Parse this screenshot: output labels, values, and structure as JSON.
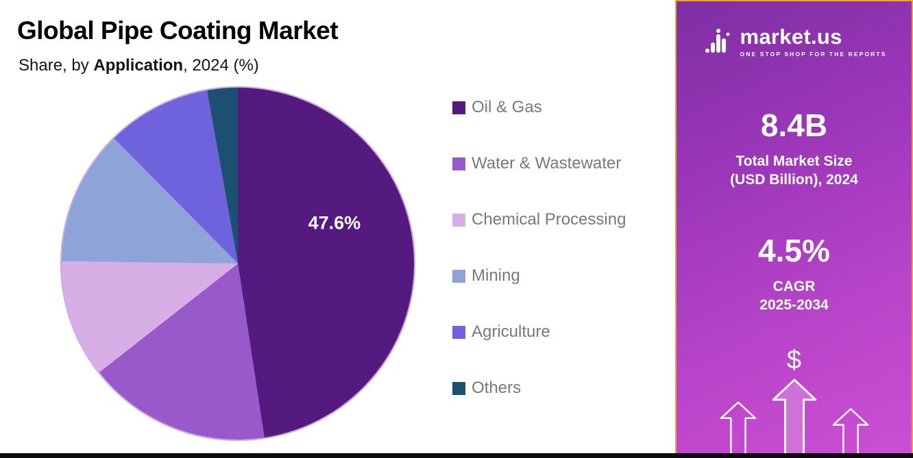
{
  "header": {
    "title": "Global Pipe Coating Market",
    "subtitle_prefix": "Share, by ",
    "subtitle_emphasis": "Application",
    "subtitle_suffix": ", 2024 (%)"
  },
  "chart_data": {
    "type": "pie",
    "title": "Global Pipe Coating Market",
    "subtitle": "Share, by Application, 2024 (%)",
    "unit": "%",
    "start_angle_deg": 0,
    "direction": "clockwise",
    "legend_position": "right",
    "slices": [
      {
        "label": "Oil & Gas",
        "value": 47.6,
        "color": "#541a80",
        "data_label": "47.6%"
      },
      {
        "label": "Water & Wastewater",
        "value": 16.8,
        "color": "#9859cb"
      },
      {
        "label": "Chemical Processing",
        "value": 10.8,
        "color": "#d7aee6"
      },
      {
        "label": "Mining",
        "value": 12.4,
        "color": "#8ea4d8"
      },
      {
        "label": "Agriculture",
        "value": 9.6,
        "color": "#6f63dd"
      },
      {
        "label": "Others",
        "value": 2.8,
        "color": "#1c5073"
      }
    ],
    "note": "Only the 47.6% Oil & Gas share is labeled on the chart; other slice values are estimated from arc sizes."
  },
  "sidebar": {
    "logo_text": "market.us",
    "logo_tagline": "ONE STOP SHOP FOR THE REPORTS",
    "market_size_value": "8.4B",
    "market_size_label_line1": "Total Market Size",
    "market_size_label_line2": "(USD Billion), 2024",
    "cagr_value": "4.5%",
    "cagr_label_line1": "CAGR",
    "cagr_label_line2": "2025-2034",
    "dollar_symbol": "$",
    "accent_border_color": "#eda237",
    "gradient_top_color": "#7e2ea2",
    "gradient_bottom_color": "#cc4fd4"
  }
}
